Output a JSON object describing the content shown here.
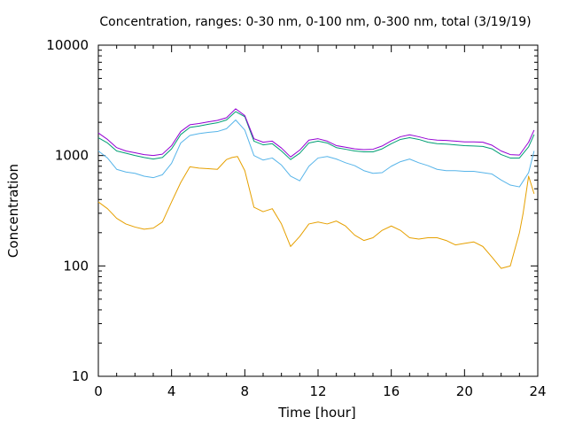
{
  "chart_data": {
    "type": "line",
    "title": "Concentration, ranges: 0-30 nm, 0-100 nm, 0-300 nm, total (3/19/19)",
    "xlabel": "Time [hour]",
    "ylabel": "Concentration",
    "xlim": [
      0,
      24
    ],
    "ylim": [
      10,
      10000
    ],
    "y_scale": "log",
    "grid": false,
    "legend": "none",
    "x_ticks": [
      "0",
      "4",
      "8",
      "12",
      "16",
      "20",
      "24"
    ],
    "y_ticks": [
      "10",
      "100",
      "1000",
      "10000"
    ],
    "series": [
      {
        "color": "#e6a000",
        "x": [
          0,
          0.5,
          1,
          1.5,
          2,
          2.5,
          3,
          3.5,
          4,
          4.5,
          5,
          5.5,
          6,
          6.5,
          7,
          7.3,
          7.6,
          8,
          8.5,
          9,
          9.5,
          10,
          10.5,
          11,
          11.5,
          12,
          12.5,
          13,
          13.5,
          14,
          14.5,
          15,
          15.5,
          16,
          16.5,
          17,
          17.5,
          18,
          18.5,
          19,
          19.5,
          20,
          20.5,
          21,
          21.5,
          22,
          22.5,
          23,
          23.2,
          23.5,
          23.8
        ],
        "y": [
          380,
          330,
          270,
          240,
          225,
          215,
          220,
          250,
          380,
          570,
          790,
          770,
          760,
          750,
          920,
          960,
          980,
          730,
          340,
          310,
          330,
          240,
          150,
          185,
          240,
          250,
          240,
          255,
          230,
          190,
          170,
          180,
          210,
          230,
          210,
          180,
          175,
          180,
          180,
          170,
          155,
          160,
          165,
          150,
          120,
          95,
          100,
          200,
          300,
          650,
          450
        ]
      },
      {
        "color": "#56b4e9",
        "x": [
          0,
          0.5,
          1,
          1.5,
          2,
          2.5,
          3,
          3.5,
          4,
          4.5,
          5,
          5.5,
          6,
          6.5,
          7,
          7.5,
          8,
          8.5,
          9,
          9.5,
          10,
          10.5,
          11,
          11.5,
          12,
          12.5,
          13,
          13.5,
          14,
          14.5,
          15,
          15.5,
          16,
          16.5,
          17,
          17.5,
          18,
          18.5,
          19,
          19.5,
          20,
          20.5,
          21,
          21.5,
          22,
          22.5,
          23,
          23.5,
          23.8
        ],
        "y": [
          1100,
          950,
          750,
          710,
          690,
          650,
          630,
          670,
          850,
          1300,
          1520,
          1580,
          1620,
          1650,
          1750,
          2100,
          1700,
          1000,
          910,
          950,
          820,
          650,
          590,
          800,
          950,
          980,
          930,
          860,
          810,
          730,
          690,
          700,
          800,
          880,
          930,
          860,
          810,
          750,
          730,
          730,
          720,
          720,
          700,
          680,
          600,
          540,
          520,
          700,
          1100
        ]
      },
      {
        "color": "#009e73",
        "x": [
          0,
          0.5,
          1,
          1.5,
          2,
          2.5,
          3,
          3.5,
          4,
          4.5,
          5,
          5.5,
          6,
          6.5,
          7,
          7.5,
          8,
          8.5,
          9,
          9.5,
          10,
          10.5,
          11,
          11.5,
          12,
          12.5,
          13,
          13.5,
          14,
          14.5,
          15,
          15.5,
          16,
          16.5,
          17,
          17.5,
          18,
          18.5,
          19,
          19.5,
          20,
          20.5,
          21,
          21.5,
          22,
          22.5,
          23,
          23.5,
          23.8
        ],
        "y": [
          1450,
          1300,
          1100,
          1050,
          1000,
          960,
          930,
          960,
          1150,
          1550,
          1800,
          1850,
          1920,
          1980,
          2100,
          2500,
          2250,
          1350,
          1250,
          1280,
          1100,
          920,
          1050,
          1300,
          1350,
          1300,
          1180,
          1140,
          1100,
          1080,
          1080,
          1150,
          1280,
          1400,
          1450,
          1400,
          1320,
          1280,
          1270,
          1250,
          1230,
          1220,
          1210,
          1150,
          1020,
          950,
          950,
          1200,
          1550
        ]
      },
      {
        "color": "#9400d3",
        "x": [
          0,
          0.5,
          1,
          1.5,
          2,
          2.5,
          3,
          3.5,
          4,
          4.5,
          5,
          5.5,
          6,
          6.5,
          7,
          7.5,
          8,
          8.5,
          9,
          9.5,
          10,
          10.5,
          11,
          11.5,
          12,
          12.5,
          13,
          13.5,
          14,
          14.5,
          15,
          15.5,
          16,
          16.5,
          17,
          17.5,
          18,
          18.5,
          19,
          19.5,
          20,
          20.5,
          21,
          21.5,
          22,
          22.5,
          23,
          23.5,
          23.8
        ],
        "y": [
          1600,
          1400,
          1180,
          1100,
          1060,
          1020,
          1000,
          1030,
          1230,
          1650,
          1900,
          1950,
          2020,
          2080,
          2200,
          2650,
          2300,
          1420,
          1320,
          1350,
          1170,
          970,
          1120,
          1380,
          1420,
          1350,
          1230,
          1190,
          1150,
          1130,
          1140,
          1220,
          1360,
          1480,
          1540,
          1480,
          1410,
          1380,
          1370,
          1350,
          1330,
          1330,
          1320,
          1240,
          1100,
          1020,
          1010,
          1320,
          1700
        ]
      }
    ]
  }
}
